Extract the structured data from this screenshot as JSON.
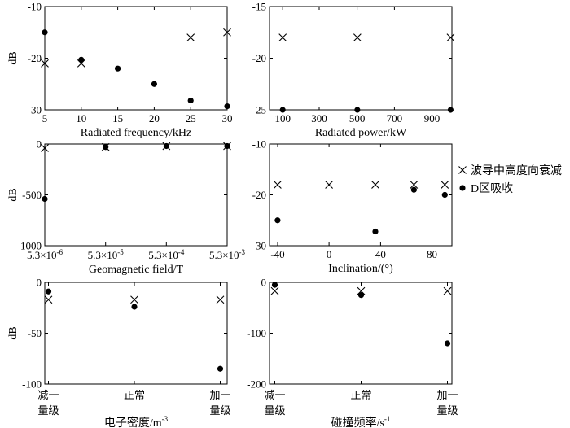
{
  "legend": {
    "items": [
      {
        "marker": "x",
        "label": "波导中高度向衰减"
      },
      {
        "marker": "dot",
        "label": "D区吸收"
      }
    ]
  },
  "chart_data": [
    {
      "type": "scatter",
      "xlabel": "Radiated frequency/kHz",
      "ylabel": "dB",
      "xlim": [
        5,
        30
      ],
      "ylim": [
        -30,
        -10
      ],
      "x_ticks": [
        "5",
        "10",
        "15",
        "20",
        "25",
        "30"
      ],
      "y_ticks": [
        "-10",
        "-20",
        "-30"
      ],
      "series": [
        {
          "name": "波导中高度向衰减",
          "marker": "x",
          "x": [
            5,
            10,
            25,
            30
          ],
          "y": [
            -21,
            -21,
            -16,
            -15
          ]
        },
        {
          "name": "D区吸收",
          "marker": "dot",
          "x": [
            5,
            10,
            15,
            20,
            25,
            30
          ],
          "y": [
            -15,
            -20.3,
            -22,
            -25,
            -28.2,
            -29.3
          ]
        }
      ]
    },
    {
      "type": "scatter",
      "xlabel": "Radiated power/kW",
      "ylabel": "",
      "xlim": [
        0,
        1000
      ],
      "ylim": [
        -25,
        -15
      ],
      "x_ticks": [
        "100",
        "300",
        "500",
        "700",
        "900"
      ],
      "y_ticks": [
        "-15",
        "-20",
        "-25"
      ],
      "series": [
        {
          "name": "波导中高度向衰减",
          "marker": "x",
          "x": [
            100,
            500,
            1000
          ],
          "y": [
            -18,
            -18,
            -18
          ]
        },
        {
          "name": "D区吸收",
          "marker": "dot",
          "x": [
            100,
            500,
            1000
          ],
          "y": [
            -25,
            -25,
            -25
          ]
        }
      ]
    },
    {
      "type": "scatter",
      "xlabel": "Geomagnetic field/T",
      "ylabel": "dB",
      "xlim": [
        5.3e-06,
        0.0053
      ],
      "xscale": "log",
      "ylim": [
        -1000,
        0
      ],
      "x_ticks": [
        {
          "base": "5.3×10",
          "exp": "-6"
        },
        {
          "base": "5.3×10",
          "exp": "-5"
        },
        {
          "base": "5.3×10",
          "exp": "-4"
        },
        {
          "base": "5.3×10",
          "exp": "-3"
        }
      ],
      "y_ticks": [
        "0",
        "-500",
        "-1000"
      ],
      "series": [
        {
          "name": "波导中高度向衰减",
          "marker": "x",
          "x": [
            5.3e-06,
            5.3e-05,
            0.00053,
            0.0053
          ],
          "y": [
            -40,
            -30,
            -20,
            -20
          ]
        },
        {
          "name": "D区吸收",
          "marker": "dot",
          "x": [
            5.3e-06,
            5.3e-05,
            0.00053,
            0.0053
          ],
          "y": [
            -540,
            -30,
            -20,
            -20
          ]
        }
      ]
    },
    {
      "type": "scatter",
      "xlabel": "Inclination/(°)",
      "ylabel": "",
      "xlim": [
        -50,
        95
      ],
      "ylim": [
        -30,
        -10
      ],
      "x_ticks": [
        "-40",
        "0",
        "40",
        "80"
      ],
      "y_ticks": [
        "-10",
        "-20",
        "-30"
      ],
      "series": [
        {
          "name": "波导中高度向衰减",
          "marker": "x",
          "x": [
            -40,
            0,
            36,
            66,
            90
          ],
          "y": [
            -18,
            -18,
            -18,
            -18,
            -18
          ]
        },
        {
          "name": "D区吸收",
          "marker": "dot",
          "x": [
            -40,
            36,
            66,
            90
          ],
          "y": [
            -25,
            -27.2,
            -19,
            -20
          ]
        }
      ]
    },
    {
      "type": "scatter",
      "xlabel": "电子密度/m",
      "xlabel_sup": "-3",
      "ylabel": "dB",
      "xlim": [
        0,
        2
      ],
      "ylim": [
        -100,
        0
      ],
      "categories": [
        "减一量级",
        "正常",
        "加一量级"
      ],
      "x_ticks": [
        [
          "减一",
          "量级"
        ],
        [
          "正常"
        ],
        [
          "加一",
          "量级"
        ]
      ],
      "y_ticks": [
        "0",
        "-50",
        "-100"
      ],
      "series": [
        {
          "name": "波导中高度向衰减",
          "marker": "x",
          "x": [
            0,
            1,
            2
          ],
          "y": [
            -17,
            -17,
            -17
          ]
        },
        {
          "name": "D区吸收",
          "marker": "dot",
          "x": [
            0,
            1,
            2
          ],
          "y": [
            -9,
            -24,
            -85
          ]
        }
      ]
    },
    {
      "type": "scatter",
      "xlabel": "碰撞频率/s",
      "xlabel_sup": "-1",
      "ylabel": "",
      "xlim": [
        0,
        2
      ],
      "ylim": [
        -200,
        0
      ],
      "categories": [
        "减一量级",
        "正常",
        "加一量级"
      ],
      "x_ticks": [
        [
          "减一",
          "量级"
        ],
        [
          "正常"
        ],
        [
          "加一",
          "量级"
        ]
      ],
      "y_ticks": [
        "0",
        "-100",
        "-200"
      ],
      "series": [
        {
          "name": "波导中高度向衰减",
          "marker": "x",
          "x": [
            0,
            1,
            2
          ],
          "y": [
            -17,
            -17,
            -17
          ]
        },
        {
          "name": "D区吸收",
          "marker": "dot",
          "x": [
            0,
            1,
            2
          ],
          "y": [
            -5,
            -25,
            -120
          ]
        }
      ]
    }
  ]
}
